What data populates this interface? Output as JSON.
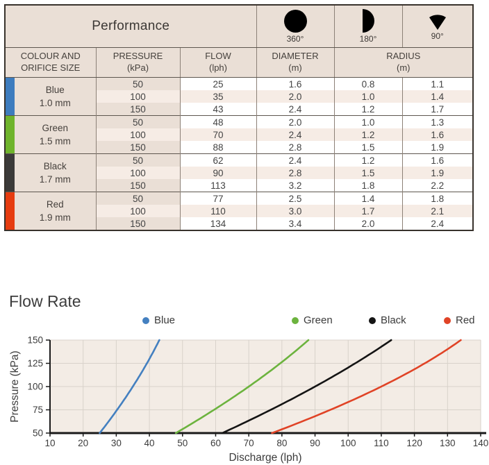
{
  "table": {
    "title": "Performance",
    "patterns": [
      {
        "label": "360°"
      },
      {
        "label": "180°"
      },
      {
        "label": "90°"
      }
    ],
    "headers": {
      "colour1": "COLOUR AND",
      "colour2": "ORIFICE SIZE",
      "pressure1": "PRESSURE",
      "pressure2": "(kPa)",
      "flow1": "FLOW",
      "flow2": "(lph)",
      "diameter1": "DIAMETER",
      "diameter2": "(m)",
      "radius1": "RADIUS",
      "radius2": "(m)"
    },
    "groups": [
      {
        "name": "Blue",
        "orifice": "1.0 mm",
        "color": "#3d7cbe",
        "rows": [
          {
            "pressure": "50",
            "flow": "25",
            "diameter": "1.6",
            "radius180": "0.8",
            "radius90": "1.1"
          },
          {
            "pressure": "100",
            "flow": "35",
            "diameter": "2.0",
            "radius180": "1.0",
            "radius90": "1.4"
          },
          {
            "pressure": "150",
            "flow": "43",
            "diameter": "2.4",
            "radius180": "1.2",
            "radius90": "1.7"
          }
        ]
      },
      {
        "name": "Green",
        "orifice": "1.5 mm",
        "color": "#6fb42c",
        "rows": [
          {
            "pressure": "50",
            "flow": "48",
            "diameter": "2.0",
            "radius180": "1.0",
            "radius90": "1.3"
          },
          {
            "pressure": "100",
            "flow": "70",
            "diameter": "2.4",
            "radius180": "1.2",
            "radius90": "1.6"
          },
          {
            "pressure": "150",
            "flow": "88",
            "diameter": "2.8",
            "radius180": "1.5",
            "radius90": "1.9"
          }
        ]
      },
      {
        "name": "Black",
        "orifice": "1.7 mm",
        "color": "#3b3a39",
        "rows": [
          {
            "pressure": "50",
            "flow": "62",
            "diameter": "2.4",
            "radius180": "1.2",
            "radius90": "1.6"
          },
          {
            "pressure": "100",
            "flow": "90",
            "diameter": "2.8",
            "radius180": "1.5",
            "radius90": "1.9"
          },
          {
            "pressure": "150",
            "flow": "113",
            "diameter": "3.2",
            "radius180": "1.8",
            "radius90": "2.2"
          }
        ]
      },
      {
        "name": "Red",
        "orifice": "1.9 mm",
        "color": "#e63c10",
        "rows": [
          {
            "pressure": "50",
            "flow": "77",
            "diameter": "2.5",
            "radius180": "1.4",
            "radius90": "1.8"
          },
          {
            "pressure": "100",
            "flow": "110",
            "diameter": "3.0",
            "radius180": "1.7",
            "radius90": "2.1"
          },
          {
            "pressure": "150",
            "flow": "134",
            "diameter": "3.4",
            "radius180": "2.0",
            "radius90": "2.4"
          }
        ]
      }
    ]
  },
  "chart_data": {
    "type": "line",
    "title": "Flow Rate",
    "xlabel": "Discharge (lph)",
    "ylabel": "Pressure (kPa)",
    "xlim": [
      10,
      140
    ],
    "ylim": [
      50,
      150
    ],
    "xticks": [
      10,
      20,
      30,
      40,
      50,
      60,
      70,
      80,
      90,
      100,
      110,
      120,
      130,
      140
    ],
    "yticks": [
      50,
      75,
      100,
      125,
      150
    ],
    "grid": true,
    "legend_position": "top",
    "plot_bg": "#f3ece5",
    "grid_color": "#d8d2ca",
    "axis_color": "#1a1a1a",
    "series": [
      {
        "name": "Blue",
        "color": "#4480c0",
        "points": [
          [
            25,
            50
          ],
          [
            35,
            100
          ],
          [
            43,
            150
          ]
        ]
      },
      {
        "name": "Green",
        "color": "#6cb33e",
        "points": [
          [
            48,
            50
          ],
          [
            70,
            100
          ],
          [
            88,
            150
          ]
        ]
      },
      {
        "name": "Black",
        "color": "#141414",
        "points": [
          [
            62,
            50
          ],
          [
            90,
            100
          ],
          [
            113,
            150
          ]
        ]
      },
      {
        "name": "Red",
        "color": "#e04326",
        "points": [
          [
            77,
            50
          ],
          [
            110,
            100
          ],
          [
            134,
            150
          ]
        ]
      }
    ]
  }
}
